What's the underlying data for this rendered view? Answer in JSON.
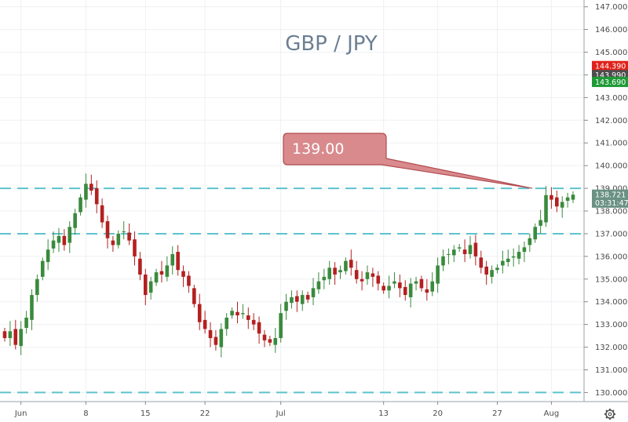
{
  "chart_data": {
    "type": "candlestick",
    "title": "GBP / JPY",
    "xlabel": "",
    "ylabel": "",
    "ylim": [
      129.6,
      147.3
    ],
    "y_ticks": [
      "130.000",
      "131.000",
      "132.000",
      "133.000",
      "134.000",
      "135.000",
      "136.000",
      "137.000",
      "138.000",
      "139.000",
      "140.000",
      "141.000",
      "142.000",
      "143.000",
      "144.000",
      "145.000",
      "146.000",
      "147.000"
    ],
    "x_ticks": [
      {
        "label": "Jun",
        "bar": 3
      },
      {
        "label": "8",
        "bar": 15
      },
      {
        "label": "15",
        "bar": 26
      },
      {
        "label": "22",
        "bar": 37
      },
      {
        "label": "Jul",
        "bar": 51
      },
      {
        "label": "13",
        "bar": 70
      },
      {
        "label": "20",
        "bar": 80
      },
      {
        "label": "27",
        "bar": 91
      },
      {
        "label": "Aug",
        "bar": 101
      }
    ],
    "horizontal_levels": [
      139.0,
      137.0,
      130.0
    ],
    "callout": {
      "text": "139.00",
      "price": 139.0
    },
    "price_badges": [
      {
        "text": "144.390",
        "price": 144.39,
        "color": "#e0221b"
      },
      {
        "text": "143.990",
        "price": 143.99,
        "color": "#4d4d4d"
      },
      {
        "text": "143.690",
        "price": 143.69,
        "color": "#1e9a36"
      },
      {
        "text": "138.721",
        "price": 138.721,
        "color": "#6a9184"
      },
      {
        "text": "03:31:47",
        "price": 138.37,
        "color": "#6a9184"
      }
    ],
    "grid": true,
    "colors": {
      "up": "#3a8a3d",
      "down": "#b32020",
      "level": "#5fc2ce",
      "callout_fill": "#d98a8d",
      "callout_stroke": "#b04a4e"
    },
    "closes": [
      132.4,
      132.7,
      132.1,
      132.8,
      133.3,
      134.3,
      135.0,
      135.8,
      136.3,
      136.7,
      136.9,
      136.5,
      137.3,
      137.9,
      138.6,
      139.2,
      138.9,
      138.3,
      137.5,
      136.8,
      136.5,
      137.0,
      137.1,
      136.7,
      136.0,
      135.2,
      134.3,
      134.9,
      135.3,
      135.2,
      135.6,
      136.1,
      135.4,
      135.1,
      134.7,
      133.9,
      133.1,
      132.8,
      132.4,
      132.1,
      132.8,
      133.3,
      133.6,
      133.4,
      133.5,
      133.2,
      133.0,
      132.6,
      132.3,
      132.2,
      132.4,
      133.5,
      134.0,
      134.2,
      134.0,
      134.3,
      134.1,
      134.6,
      134.9,
      135.1,
      135.5,
      135.2,
      135.4,
      135.8,
      135.5,
      135.0,
      134.9,
      135.3,
      135.1,
      134.8,
      134.5,
      134.7,
      134.9,
      134.6,
      134.3,
      134.8,
      134.9,
      134.6,
      134.4,
      134.9,
      135.6,
      136.0,
      136.1,
      136.3,
      136.4,
      136.1,
      136.5,
      136.0,
      135.5,
      135.2,
      135.4,
      135.5,
      135.8,
      135.9,
      136.0,
      136.2,
      136.4,
      136.8,
      137.3,
      137.6,
      138.7,
      138.5,
      138.2,
      138.4,
      138.6,
      138.72
    ]
  }
}
